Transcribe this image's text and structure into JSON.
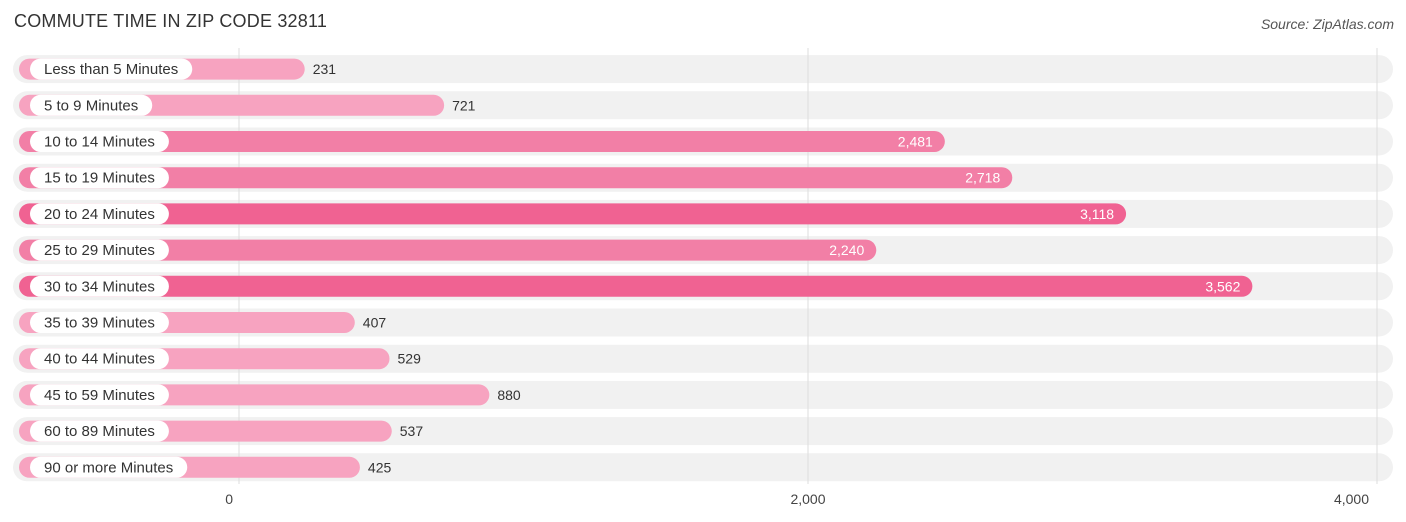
{
  "header": {
    "title": "COMMUTE TIME IN ZIP CODE 32811",
    "source": "Source: ZipAtlas.com"
  },
  "colors": {
    "bar_light": "#f7a3c0",
    "bar_mid": "#f27fa6",
    "bar_strong": "#f06292",
    "track": "#f1f1f1",
    "grid": "#dddddd",
    "value_inside": "#ffffff",
    "value_outside": "#333333"
  },
  "chart_data": {
    "type": "bar",
    "orientation": "horizontal",
    "title": "COMMUTE TIME IN ZIP CODE 32811",
    "categories": [
      "Less than 5 Minutes",
      "5 to 9 Minutes",
      "10 to 14 Minutes",
      "15 to 19 Minutes",
      "20 to 24 Minutes",
      "25 to 29 Minutes",
      "30 to 34 Minutes",
      "35 to 39 Minutes",
      "40 to 44 Minutes",
      "45 to 59 Minutes",
      "60 to 89 Minutes",
      "90 or more Minutes"
    ],
    "values": [
      231,
      721,
      2481,
      2718,
      3118,
      2240,
      3562,
      407,
      529,
      880,
      537,
      425
    ],
    "value_labels": [
      "231",
      "721",
      "2,481",
      "2,718",
      "3,118",
      "2,240",
      "3,562",
      "407",
      "529",
      "880",
      "537",
      "425"
    ],
    "xlim": [
      0,
      4000
    ],
    "xticks": [
      0,
      2000,
      4000
    ],
    "xtick_labels": [
      "0",
      "2,000",
      "4,000"
    ],
    "xlabel": "",
    "ylabel": "",
    "grid": true
  }
}
